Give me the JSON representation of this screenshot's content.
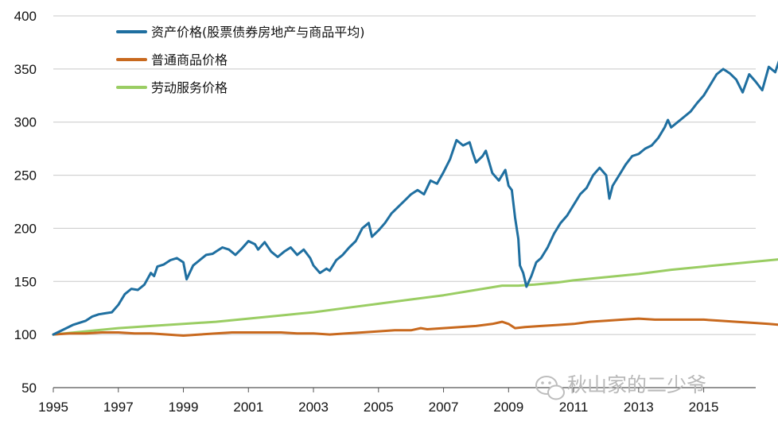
{
  "chart_data": {
    "type": "line",
    "title": "",
    "xlabel": "",
    "ylabel": "",
    "xlim": [
      1995,
      2016.6
    ],
    "ylim": [
      50,
      400
    ],
    "y_ticks": [
      50,
      100,
      150,
      200,
      250,
      300,
      350,
      400
    ],
    "x_ticks": [
      1995,
      1997,
      1999,
      2001,
      2003,
      2005,
      2007,
      2009,
      2011,
      2013,
      2015
    ],
    "grid": "horizontal",
    "legend_position": "top-left",
    "series": [
      {
        "name": "资产价格(股票债券房地产与商品平均)",
        "color": "#1f6fa0",
        "points": [
          [
            1995.0,
            100
          ],
          [
            1995.2,
            103
          ],
          [
            1995.4,
            106
          ],
          [
            1995.6,
            109
          ],
          [
            1995.8,
            111
          ],
          [
            1996.0,
            113
          ],
          [
            1996.2,
            117
          ],
          [
            1996.4,
            119
          ],
          [
            1996.6,
            120
          ],
          [
            1996.8,
            121
          ],
          [
            1997.0,
            128
          ],
          [
            1997.2,
            138
          ],
          [
            1997.4,
            143
          ],
          [
            1997.6,
            142
          ],
          [
            1997.8,
            147
          ],
          [
            1998.0,
            158
          ],
          [
            1998.1,
            155
          ],
          [
            1998.2,
            164
          ],
          [
            1998.4,
            166
          ],
          [
            1998.6,
            170
          ],
          [
            1998.8,
            172
          ],
          [
            1999.0,
            168
          ],
          [
            1999.1,
            152
          ],
          [
            1999.3,
            165
          ],
          [
            1999.5,
            170
          ],
          [
            1999.7,
            175
          ],
          [
            1999.9,
            176
          ],
          [
            2000.0,
            178
          ],
          [
            2000.2,
            182
          ],
          [
            2000.4,
            180
          ],
          [
            2000.6,
            175
          ],
          [
            2000.8,
            181
          ],
          [
            2001.0,
            188
          ],
          [
            2001.2,
            185
          ],
          [
            2001.3,
            180
          ],
          [
            2001.5,
            187
          ],
          [
            2001.7,
            178
          ],
          [
            2001.9,
            173
          ],
          [
            2002.1,
            178
          ],
          [
            2002.3,
            182
          ],
          [
            2002.5,
            175
          ],
          [
            2002.7,
            180
          ],
          [
            2002.9,
            172
          ],
          [
            2003.0,
            165
          ],
          [
            2003.2,
            158
          ],
          [
            2003.4,
            162
          ],
          [
            2003.5,
            160
          ],
          [
            2003.7,
            170
          ],
          [
            2003.9,
            175
          ],
          [
            2004.1,
            182
          ],
          [
            2004.3,
            188
          ],
          [
            2004.5,
            200
          ],
          [
            2004.7,
            205
          ],
          [
            2004.8,
            192
          ],
          [
            2005.0,
            198
          ],
          [
            2005.2,
            205
          ],
          [
            2005.4,
            214
          ],
          [
            2005.6,
            220
          ],
          [
            2005.8,
            226
          ],
          [
            2006.0,
            232
          ],
          [
            2006.2,
            236
          ],
          [
            2006.4,
            232
          ],
          [
            2006.6,
            245
          ],
          [
            2006.8,
            242
          ],
          [
            2007.0,
            253
          ],
          [
            2007.2,
            265
          ],
          [
            2007.4,
            283
          ],
          [
            2007.6,
            278
          ],
          [
            2007.8,
            281
          ],
          [
            2007.9,
            271
          ],
          [
            2008.0,
            262
          ],
          [
            2008.2,
            268
          ],
          [
            2008.3,
            273
          ],
          [
            2008.5,
            252
          ],
          [
            2008.7,
            245
          ],
          [
            2008.9,
            255
          ],
          [
            2009.0,
            240
          ],
          [
            2009.1,
            236
          ],
          [
            2009.2,
            210
          ],
          [
            2009.3,
            190
          ],
          [
            2009.35,
            165
          ],
          [
            2009.45,
            158
          ],
          [
            2009.55,
            145
          ],
          [
            2009.7,
            155
          ],
          [
            2009.85,
            168
          ],
          [
            2010.0,
            172
          ],
          [
            2010.2,
            182
          ],
          [
            2010.4,
            195
          ],
          [
            2010.6,
            205
          ],
          [
            2010.8,
            212
          ],
          [
            2011.0,
            222
          ],
          [
            2011.2,
            232
          ],
          [
            2011.4,
            238
          ],
          [
            2011.6,
            250
          ],
          [
            2011.8,
            257
          ],
          [
            2012.0,
            250
          ],
          [
            2012.1,
            228
          ],
          [
            2012.2,
            240
          ],
          [
            2012.4,
            250
          ],
          [
            2012.6,
            260
          ],
          [
            2012.8,
            268
          ],
          [
            2013.0,
            270
          ],
          [
            2013.2,
            275
          ],
          [
            2013.4,
            278
          ],
          [
            2013.6,
            285
          ],
          [
            2013.8,
            295
          ],
          [
            2013.9,
            302
          ],
          [
            2014.0,
            295
          ],
          [
            2014.2,
            300
          ],
          [
            2014.4,
            305
          ],
          [
            2014.6,
            310
          ],
          [
            2014.8,
            318
          ],
          [
            2015.0,
            325
          ],
          [
            2015.2,
            335
          ],
          [
            2015.4,
            345
          ],
          [
            2015.6,
            350
          ],
          [
            2015.8,
            346
          ],
          [
            2016.0,
            340
          ],
          [
            2016.2,
            328
          ],
          [
            2016.4,
            345
          ],
          [
            2016.6,
            338
          ],
          [
            2016.8,
            330
          ],
          [
            2017.0,
            352
          ],
          [
            2017.2,
            347
          ],
          [
            2017.4,
            365
          ]
        ]
      },
      {
        "name": "普通商品价格",
        "color": "#c8691e",
        "points": [
          [
            1995.0,
            100
          ],
          [
            1995.5,
            101
          ],
          [
            1996.0,
            101
          ],
          [
            1996.5,
            102
          ],
          [
            1997.0,
            102
          ],
          [
            1997.5,
            101
          ],
          [
            1998.0,
            101
          ],
          [
            1998.5,
            100
          ],
          [
            1999.0,
            99
          ],
          [
            1999.5,
            100
          ],
          [
            2000.0,
            101
          ],
          [
            2000.5,
            102
          ],
          [
            2001.0,
            102
          ],
          [
            2001.5,
            102
          ],
          [
            2002.0,
            102
          ],
          [
            2002.5,
            101
          ],
          [
            2003.0,
            101
          ],
          [
            2003.5,
            100
          ],
          [
            2004.0,
            101
          ],
          [
            2004.5,
            102
          ],
          [
            2005.0,
            103
          ],
          [
            2005.5,
            104
          ],
          [
            2006.0,
            104
          ],
          [
            2006.3,
            106
          ],
          [
            2006.5,
            105
          ],
          [
            2007.0,
            106
          ],
          [
            2007.5,
            107
          ],
          [
            2008.0,
            108
          ],
          [
            2008.5,
            110
          ],
          [
            2008.8,
            112
          ],
          [
            2009.0,
            110
          ],
          [
            2009.2,
            106
          ],
          [
            2009.5,
            107
          ],
          [
            2010.0,
            108
          ],
          [
            2010.5,
            109
          ],
          [
            2011.0,
            110
          ],
          [
            2011.5,
            112
          ],
          [
            2012.0,
            113
          ],
          [
            2012.5,
            114
          ],
          [
            2013.0,
            115
          ],
          [
            2013.5,
            114
          ],
          [
            2014.0,
            114
          ],
          [
            2014.5,
            114
          ],
          [
            2015.0,
            114
          ],
          [
            2015.5,
            113
          ],
          [
            2016.0,
            112
          ],
          [
            2016.5,
            111
          ],
          [
            2017.0,
            110
          ],
          [
            2017.4,
            109
          ]
        ]
      },
      {
        "name": "劳动服务价格",
        "color": "#9acd63",
        "points": [
          [
            1995.0,
            100
          ],
          [
            1996.0,
            103
          ],
          [
            1997.0,
            106
          ],
          [
            1998.0,
            108
          ],
          [
            1999.0,
            110
          ],
          [
            2000.0,
            112
          ],
          [
            2001.0,
            115
          ],
          [
            2002.0,
            118
          ],
          [
            2003.0,
            121
          ],
          [
            2004.0,
            125
          ],
          [
            2005.0,
            129
          ],
          [
            2006.0,
            133
          ],
          [
            2007.0,
            137
          ],
          [
            2008.0,
            142
          ],
          [
            2008.8,
            146
          ],
          [
            2009.3,
            146
          ],
          [
            2009.8,
            147
          ],
          [
            2010.5,
            149
          ],
          [
            2011.0,
            151
          ],
          [
            2012.0,
            154
          ],
          [
            2013.0,
            157
          ],
          [
            2014.0,
            161
          ],
          [
            2015.0,
            164
          ],
          [
            2016.0,
            167
          ],
          [
            2017.4,
            171
          ]
        ]
      }
    ]
  },
  "watermark": {
    "text": "秋山家的二少爷",
    "icon": "wechat-icon"
  }
}
